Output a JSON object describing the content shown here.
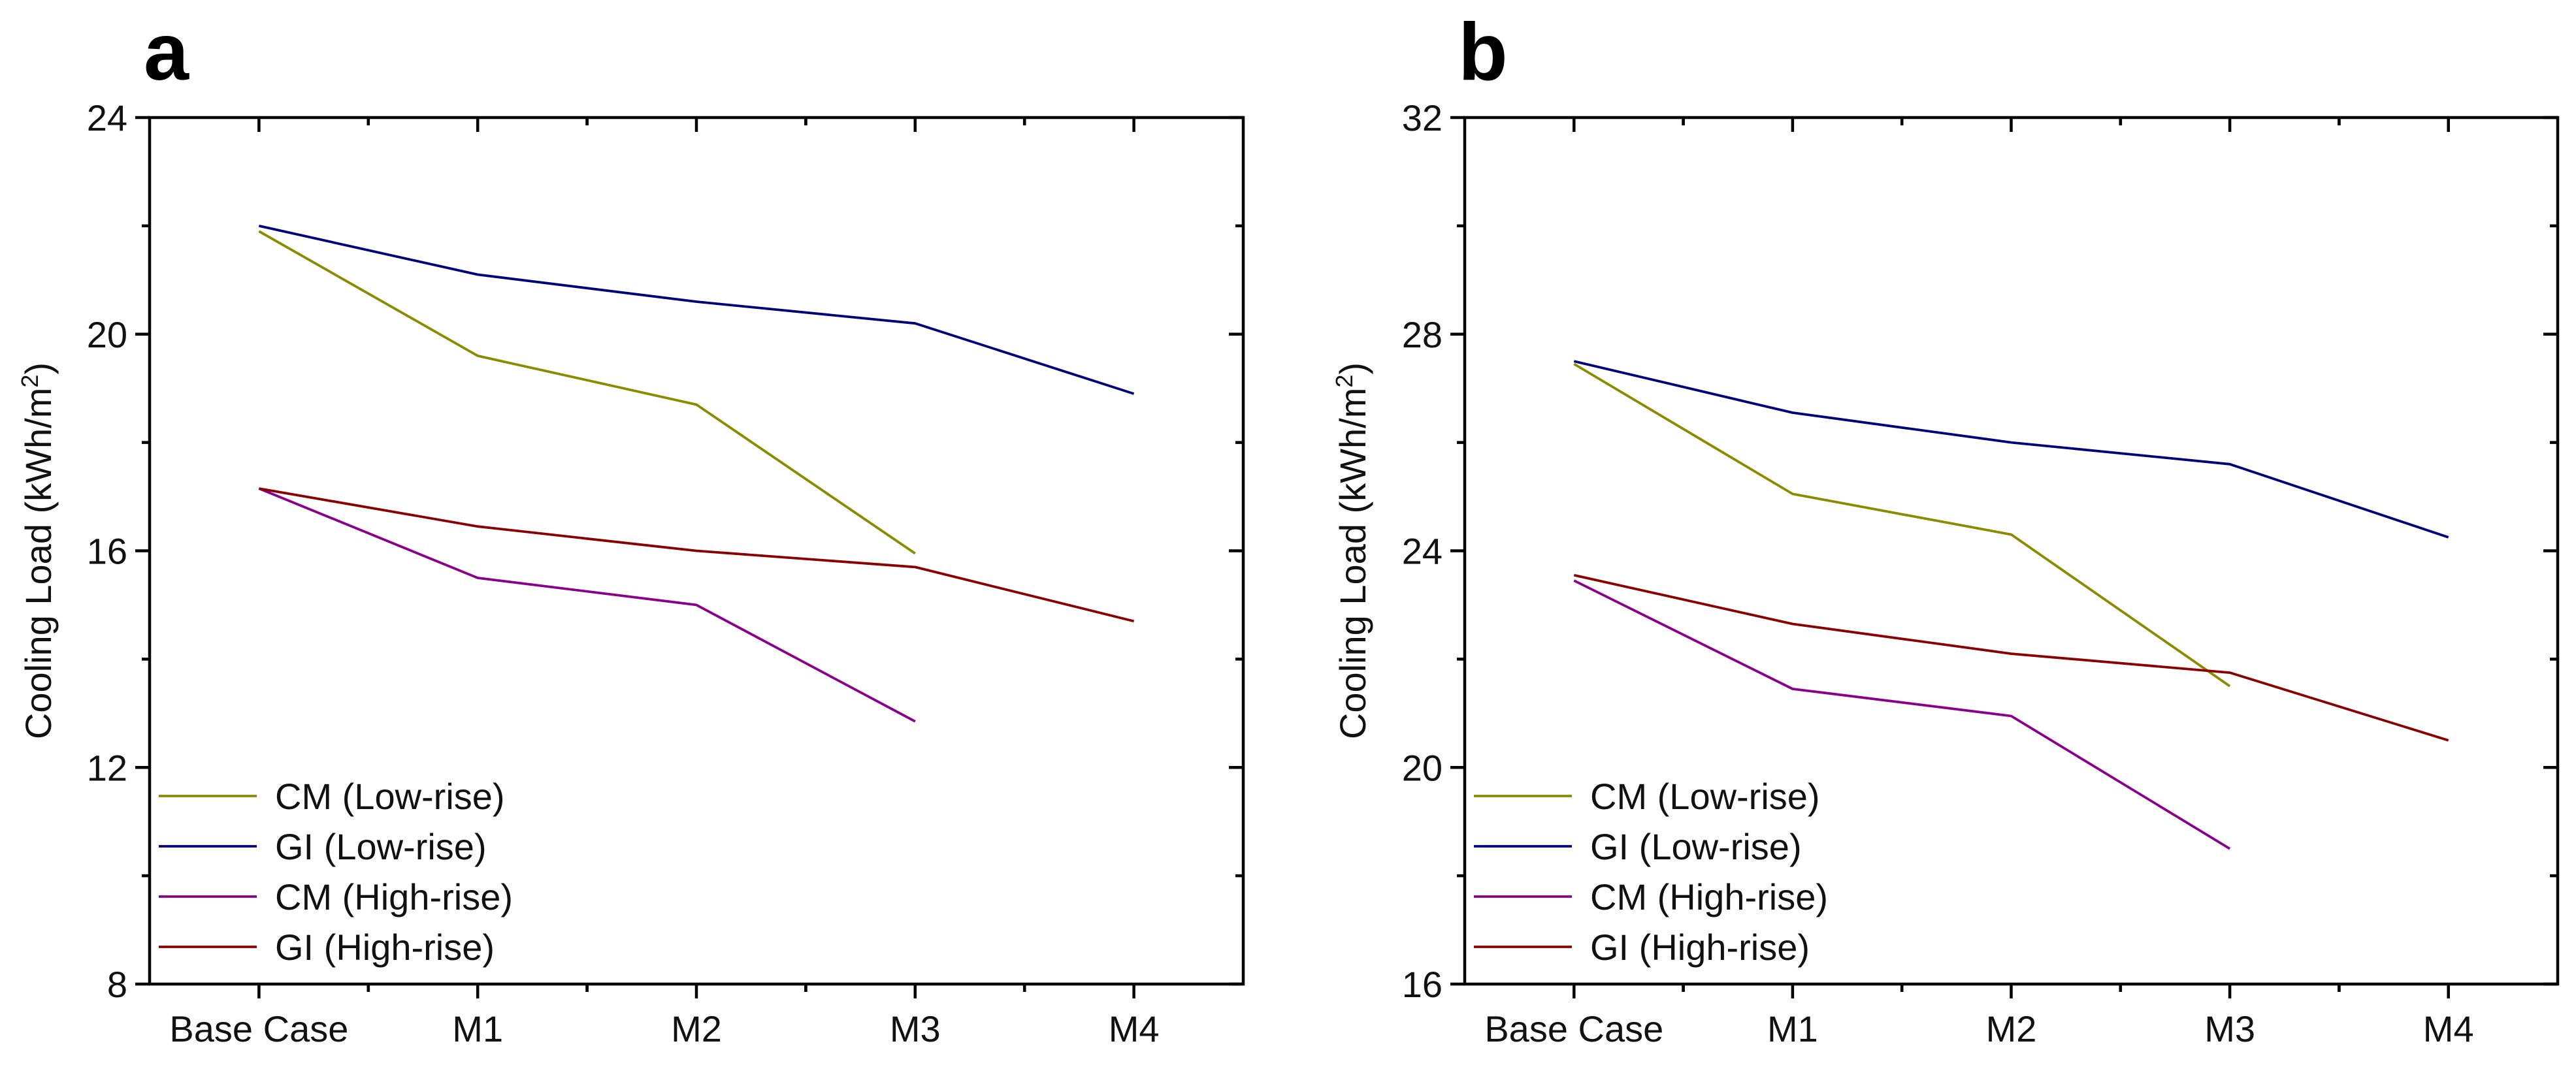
{
  "chart_data": [
    {
      "type": "line",
      "panel_label": "a",
      "categories": [
        "Base Case",
        "M1",
        "M2",
        "M3",
        "M4"
      ],
      "ylabel_prefix": "Cooling Load (kWh/m",
      "ylabel_sup": "2",
      "ylabel_suffix": ")",
      "ylim": [
        8,
        24
      ],
      "yticks": [
        8,
        12,
        16,
        20,
        24
      ],
      "grid": false,
      "legend_position": "bottom-left",
      "series": [
        {
          "name": "CM (Low-rise)",
          "color": "#8b8b00",
          "values": [
            21.9,
            19.6,
            18.7,
            15.95,
            null
          ]
        },
        {
          "name": "GI (Low-rise)",
          "color": "#00007f",
          "values": [
            22.0,
            21.1,
            20.6,
            20.2,
            18.9
          ]
        },
        {
          "name": "CM (High-rise)",
          "color": "#8b008b",
          "values": [
            17.15,
            15.5,
            15.0,
            12.85,
            null
          ]
        },
        {
          "name": "GI (High-rise)",
          "color": "#8b0000",
          "values": [
            17.15,
            16.45,
            16.0,
            15.7,
            14.7
          ]
        }
      ]
    },
    {
      "type": "line",
      "panel_label": "b",
      "categories": [
        "Base Case",
        "M1",
        "M2",
        "M3",
        "M4"
      ],
      "ylabel_prefix": "Cooling Load (kWh/m",
      "ylabel_sup": "2",
      "ylabel_suffix": ")",
      "ylim": [
        16,
        32
      ],
      "yticks": [
        16,
        20,
        24,
        28,
        32
      ],
      "grid": false,
      "legend_position": "bottom-left",
      "series": [
        {
          "name": "CM (Low-rise)",
          "color": "#8b8b00",
          "values": [
            27.45,
            25.05,
            24.3,
            21.5,
            null
          ]
        },
        {
          "name": "GI (Low-rise)",
          "color": "#00007f",
          "values": [
            27.5,
            26.55,
            26.0,
            25.6,
            24.25
          ]
        },
        {
          "name": "CM (High-rise)",
          "color": "#8b008b",
          "values": [
            23.45,
            21.45,
            20.95,
            18.5,
            null
          ]
        },
        {
          "name": "GI (High-rise)",
          "color": "#8b0000",
          "values": [
            23.55,
            22.65,
            22.1,
            21.75,
            20.5
          ]
        }
      ]
    }
  ]
}
